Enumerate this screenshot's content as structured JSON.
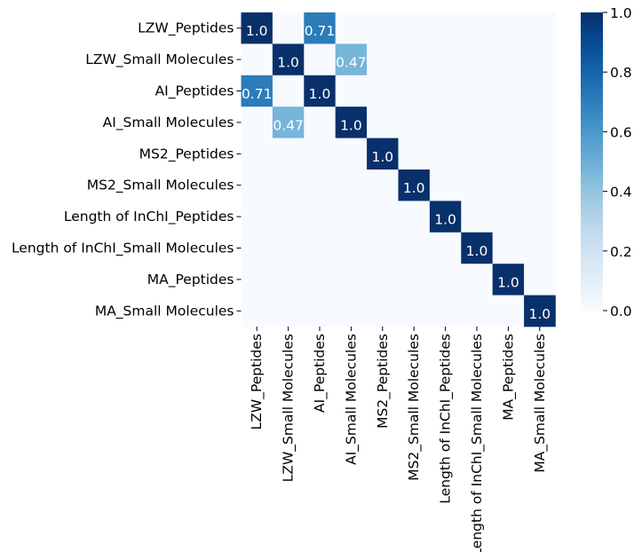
{
  "chart_data": {
    "type": "heatmap",
    "title": "",
    "xlabel": "",
    "ylabel": "",
    "rows": [
      "LZW_Peptides",
      "LZW_Small Molecules",
      "AI_Peptides",
      "AI_Small Molecules",
      "MS2_Peptides",
      "MS2_Small Molecules",
      "Length of InChI_Peptides",
      "Length of InChI_Small Molecules",
      "MA_Peptides",
      "MA_Small Molecules"
    ],
    "columns": [
      "LZW_Peptides",
      "LZW_Small Molecules",
      "AI_Peptides",
      "AI_Small Molecules",
      "MS2_Peptides",
      "MS2_Small Molecules",
      "Length of InChI_Peptides",
      "Length of InChI_Small Molecules",
      "MA_Peptides",
      "MA_Small Molecules"
    ],
    "values": [
      [
        1.0,
        0,
        0.71,
        0,
        0,
        0,
        0,
        0,
        0,
        0
      ],
      [
        0,
        1.0,
        0,
        0.47,
        0,
        0,
        0,
        0,
        0,
        0
      ],
      [
        0.71,
        0,
        1.0,
        0,
        0,
        0,
        0,
        0,
        0,
        0
      ],
      [
        0,
        0.47,
        0,
        1.0,
        0,
        0,
        0,
        0,
        0,
        0
      ],
      [
        0,
        0,
        0,
        0,
        1.0,
        0,
        0,
        0,
        0,
        0
      ],
      [
        0,
        0,
        0,
        0,
        0,
        1.0,
        0,
        0,
        0,
        0
      ],
      [
        0,
        0,
        0,
        0,
        0,
        0,
        1.0,
        0,
        0,
        0
      ],
      [
        0,
        0,
        0,
        0,
        0,
        0,
        0,
        1.0,
        0,
        0
      ],
      [
        0,
        0,
        0,
        0,
        0,
        0,
        0,
        0,
        1.0,
        0
      ],
      [
        0,
        0,
        0,
        0,
        0,
        0,
        0,
        0,
        0,
        1.0
      ]
    ],
    "annotations": [
      {
        "row": 0,
        "col": 0,
        "text": "1.0"
      },
      {
        "row": 0,
        "col": 2,
        "text": "0.71"
      },
      {
        "row": 1,
        "col": 1,
        "text": "1.0"
      },
      {
        "row": 1,
        "col": 3,
        "text": "0.47"
      },
      {
        "row": 2,
        "col": 0,
        "text": "0.71"
      },
      {
        "row": 2,
        "col": 2,
        "text": "1.0"
      },
      {
        "row": 3,
        "col": 1,
        "text": "0.47"
      },
      {
        "row": 3,
        "col": 3,
        "text": "1.0"
      },
      {
        "row": 4,
        "col": 4,
        "text": "1.0"
      },
      {
        "row": 5,
        "col": 5,
        "text": "1.0"
      },
      {
        "row": 6,
        "col": 6,
        "text": "1.0"
      },
      {
        "row": 7,
        "col": 7,
        "text": "1.0"
      },
      {
        "row": 8,
        "col": 8,
        "text": "1.0"
      },
      {
        "row": 9,
        "col": 9,
        "text": "1.0"
      }
    ],
    "colorbar": {
      "range": [
        0.0,
        1.0
      ],
      "ticks": [
        "0.0",
        "0.2",
        "0.4",
        "0.6",
        "0.8",
        "1.0"
      ],
      "colormap": "Blues",
      "low_color": "#f7fbff",
      "high_color": "#08306b"
    }
  }
}
